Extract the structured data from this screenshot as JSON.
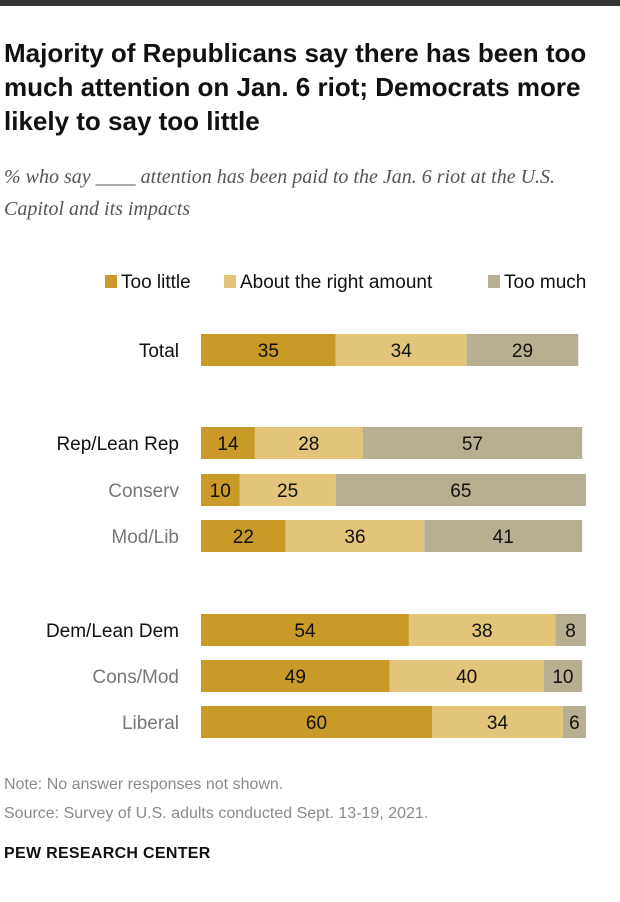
{
  "title": "Majority of Republicans say there has been too much attention on Jan. 6 riot; Democrats more likely to say too little",
  "subtitle": "% who say ____ attention has been paid to the Jan. 6 riot at the U.S. Capitol and its impacts",
  "note": "Note: No answer responses not shown.",
  "source": "Source: Survey of U.S. adults conducted Sept. 13-19, 2021.",
  "brand": "PEW RESEARCH CENTER",
  "colors": {
    "too_little": "#c99a27",
    "about_right": "#e2c47b",
    "too_much": "#b8ae92",
    "accent_line": "#333333"
  },
  "chart_data": {
    "type": "bar",
    "orientation": "horizontal",
    "stacked": true,
    "legend_position": "top",
    "grid": false,
    "categories": [
      "Total",
      "Rep/Lean Rep",
      "Conserv",
      "Mod/Lib",
      "Dem/Lean Dem",
      "Cons/Mod",
      "Liberal"
    ],
    "category_roles": [
      "main",
      "main",
      "sub",
      "sub",
      "main",
      "sub",
      "sub"
    ],
    "series": [
      {
        "name": "Too little",
        "values": [
          35,
          14,
          10,
          22,
          54,
          49,
          60
        ]
      },
      {
        "name": "About the right amount",
        "values": [
          34,
          28,
          25,
          36,
          38,
          40,
          34
        ]
      },
      {
        "name": "Too much",
        "values": [
          29,
          57,
          65,
          41,
          8,
          10,
          6
        ]
      }
    ],
    "xlim": [
      0,
      100
    ]
  }
}
